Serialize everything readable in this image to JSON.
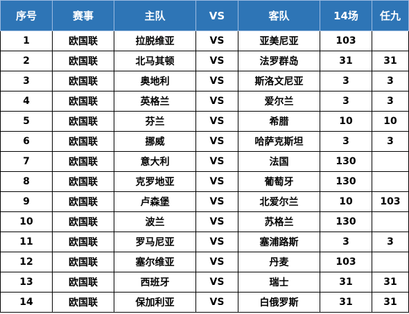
{
  "header": {
    "seq": "序号",
    "event": "赛事",
    "home": "主队",
    "vs": "VS",
    "away": "客队",
    "m14": "14场",
    "r9": "任九"
  },
  "rows": [
    {
      "seq": "1",
      "event": "欧国联",
      "home": "拉脱维亚",
      "vs": "VS",
      "away": "亚美尼亚",
      "m14": "103",
      "r9": ""
    },
    {
      "seq": "2",
      "event": "欧国联",
      "home": "北马其顿",
      "vs": "VS",
      "away": "法罗群岛",
      "m14": "31",
      "r9": "31"
    },
    {
      "seq": "3",
      "event": "欧国联",
      "home": "奥地利",
      "vs": "VS",
      "away": "斯洛文尼亚",
      "m14": "3",
      "r9": "3"
    },
    {
      "seq": "4",
      "event": "欧国联",
      "home": "英格兰",
      "vs": "VS",
      "away": "爱尔兰",
      "m14": "3",
      "r9": "3"
    },
    {
      "seq": "5",
      "event": "欧国联",
      "home": "芬兰",
      "vs": "VS",
      "away": "希腊",
      "m14": "10",
      "r9": "10"
    },
    {
      "seq": "6",
      "event": "欧国联",
      "home": "挪威",
      "vs": "VS",
      "away": "哈萨克斯坦",
      "m14": "3",
      "r9": "3"
    },
    {
      "seq": "7",
      "event": "欧国联",
      "home": "意大利",
      "vs": "VS",
      "away": "法国",
      "m14": "130",
      "r9": ""
    },
    {
      "seq": "8",
      "event": "欧国联",
      "home": "克罗地亚",
      "vs": "VS",
      "away": "葡萄牙",
      "m14": "130",
      "r9": ""
    },
    {
      "seq": "9",
      "event": "欧国联",
      "home": "卢森堡",
      "vs": "VS",
      "away": "北爱尔兰",
      "m14": "10",
      "r9": "103"
    },
    {
      "seq": "10",
      "event": "欧国联",
      "home": "波兰",
      "vs": "VS",
      "away": "苏格兰",
      "m14": "130",
      "r9": ""
    },
    {
      "seq": "11",
      "event": "欧国联",
      "home": "罗马尼亚",
      "vs": "VS",
      "away": "塞浦路斯",
      "m14": "3",
      "r9": "3"
    },
    {
      "seq": "12",
      "event": "欧国联",
      "home": "塞尔维亚",
      "vs": "VS",
      "away": "丹麦",
      "m14": "103",
      "r9": ""
    },
    {
      "seq": "13",
      "event": "欧国联",
      "home": "西班牙",
      "vs": "VS",
      "away": "瑞士",
      "m14": "31",
      "r9": "31"
    },
    {
      "seq": "14",
      "event": "欧国联",
      "home": "保加利亚",
      "vs": "VS",
      "away": "白俄罗斯",
      "m14": "31",
      "r9": "31"
    }
  ]
}
